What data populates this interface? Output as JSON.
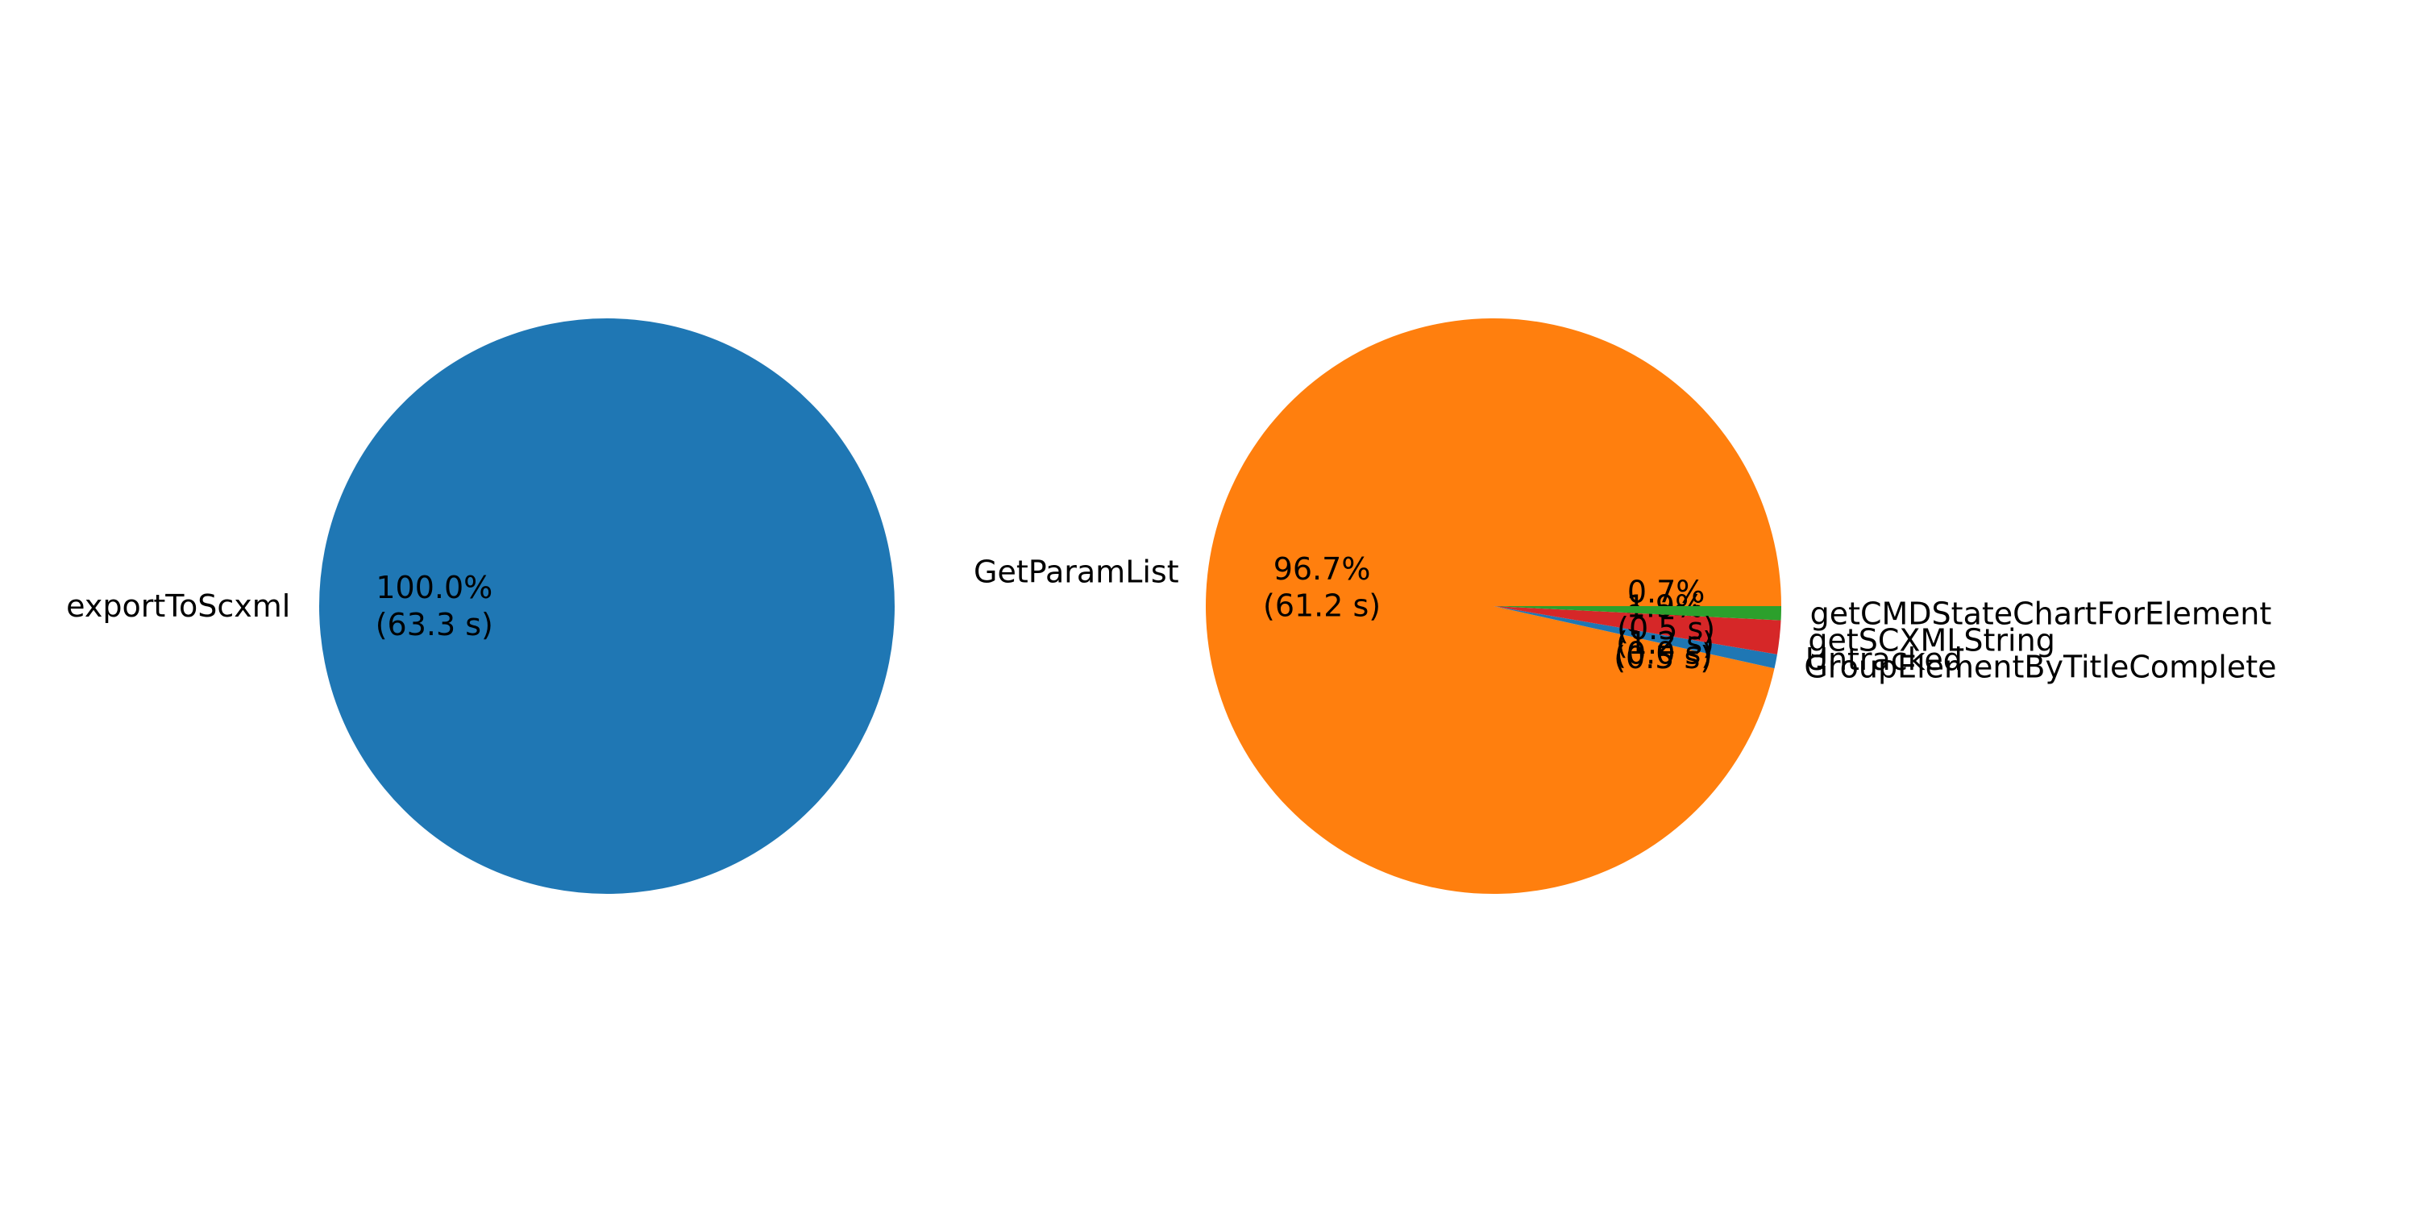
{
  "chart_data": [
    {
      "type": "pie",
      "slices": [
        {
          "label": "exportToScxml",
          "value": 63.3,
          "percent_label": "100.0%",
          "value_label": "(63.3 s)",
          "color": "#1f77b4"
        }
      ]
    },
    {
      "type": "pie",
      "slices": [
        {
          "label": "GetParamList",
          "value": 61.2,
          "percent_label": "96.7%",
          "value_label": "(61.2 s)",
          "color": "#ff7f0e"
        },
        {
          "label": "GroupElementByTitleComplete",
          "value": 0.5,
          "percent_label": "0.7%",
          "value_label": "(0.5 s)",
          "color": "#1f77b4"
        },
        {
          "label": "Untracked",
          "value": 0.0,
          "percent_label": "0.0%",
          "value_label": "(0.0 s)",
          "color": "#9467bd"
        },
        {
          "label": "getSCXMLString",
          "value": 1.2,
          "percent_label": "1.9%",
          "value_label": "(1.2 s)",
          "color": "#d62728"
        },
        {
          "label": "getCMDStateChartForElement",
          "value": 0.5,
          "percent_label": "0.7%",
          "value_label": "(0.5 s)",
          "color": "#2ca02c"
        }
      ]
    }
  ]
}
